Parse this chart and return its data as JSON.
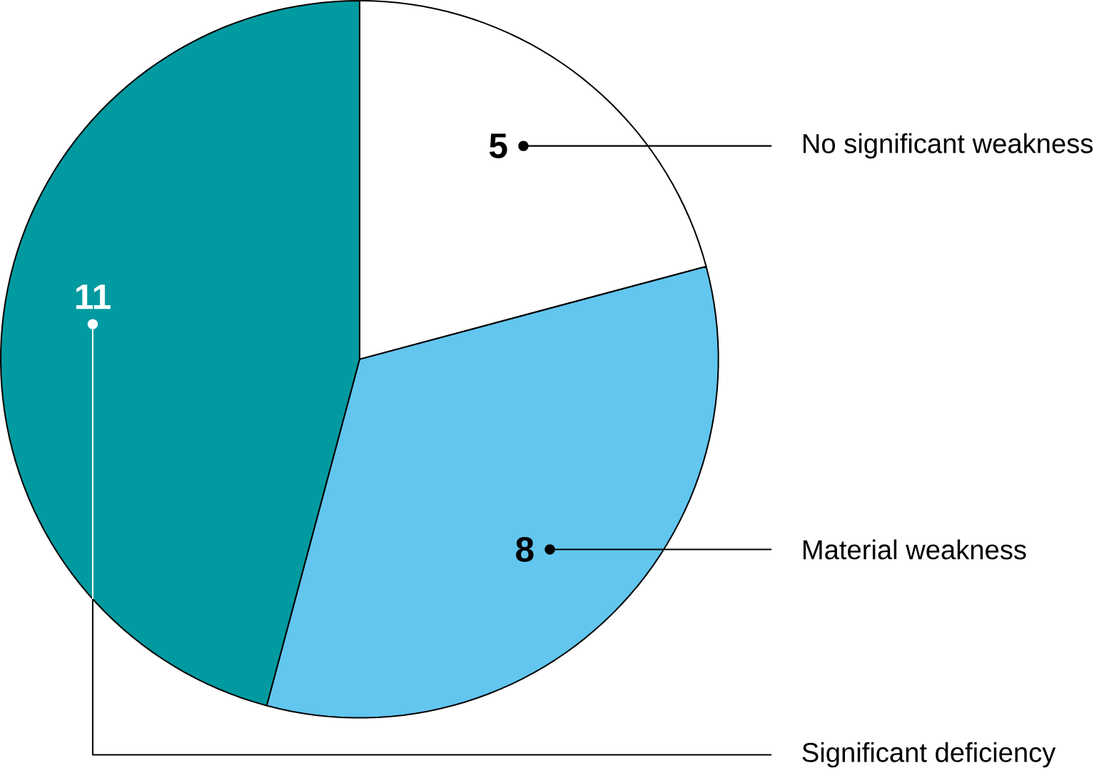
{
  "chart_data": {
    "type": "pie",
    "categories": [
      "No significant weakness",
      "Material weakness",
      "Significant deficiency"
    ],
    "values": [
      5,
      8,
      11
    ],
    "colors": [
      "#ffffff",
      "#62c6ef",
      "#009aa0"
    ],
    "data_labels": true
  }
}
